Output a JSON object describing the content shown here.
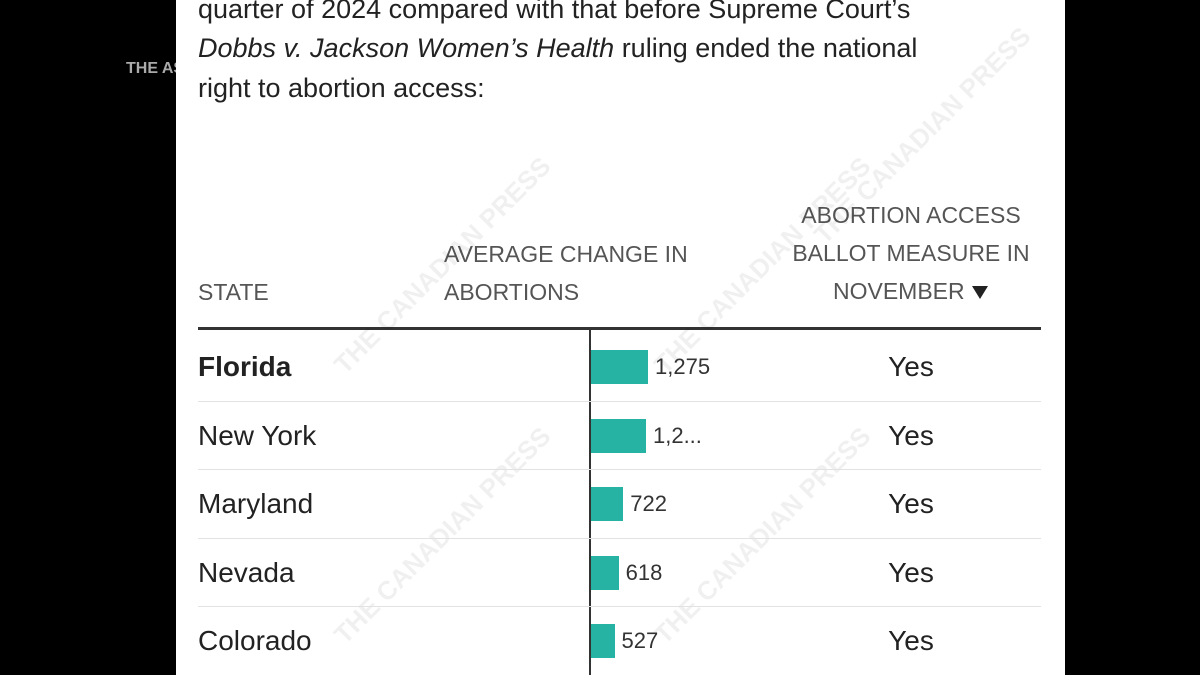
{
  "side_label": "THE AS",
  "watermark": "THE CANADIAN PRESS",
  "intro": {
    "line1": "quarter of 2024 compared with that before Supreme Court’s",
    "line2_italic": "Dobbs v. Jackson Women’s Health",
    "line2_rest": " ruling ended the national",
    "line3": "right to abortion access:"
  },
  "table": {
    "headers": [
      "STATE",
      "AVERAGE CHANGE IN ABORTIONS",
      "ABORTION ACCESS BALLOT MEASURE IN NOVEMBER"
    ],
    "rows": [
      {
        "state": "Florida",
        "change": 1275,
        "change_label": "1,275",
        "ballot": "Yes"
      },
      {
        "state": "New York",
        "change": 1230,
        "change_label": "1,2...",
        "ballot": "Yes"
      },
      {
        "state": "Maryland",
        "change": 722,
        "change_label": "722",
        "ballot": "Yes"
      },
      {
        "state": "Nevada",
        "change": 618,
        "change_label": "618",
        "ballot": "Yes"
      },
      {
        "state": "Colorado",
        "change": 527,
        "change_label": "527",
        "ballot": "Yes"
      }
    ]
  }
}
